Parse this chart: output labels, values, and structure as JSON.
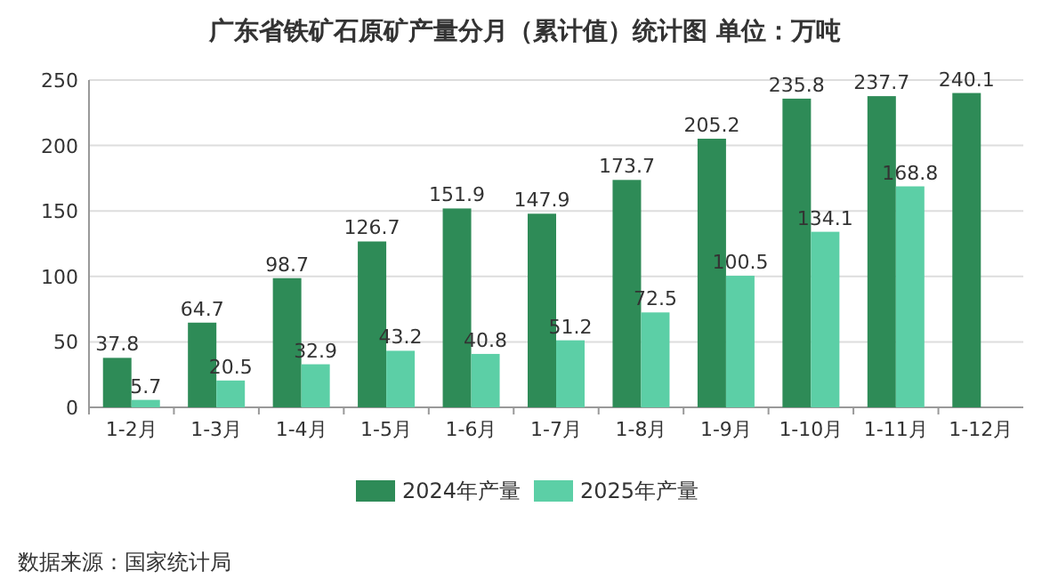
{
  "chart_data": {
    "type": "bar",
    "title": "广东省铁矿石原矿产量分月（累计值）统计图 单位：万吨",
    "categories": [
      "1-2月",
      "1-3月",
      "1-4月",
      "1-5月",
      "1-6月",
      "1-7月",
      "1-8月",
      "1-9月",
      "1-10月",
      "1-11月",
      "1-12月"
    ],
    "series": [
      {
        "name": "2024年产量",
        "color": "#2e8b57",
        "values": [
          37.8,
          64.7,
          98.7,
          126.7,
          151.9,
          147.9,
          173.7,
          205.2,
          235.8,
          237.7,
          240.1
        ]
      },
      {
        "name": "2025年产量",
        "color": "#5ccfa6",
        "values": [
          5.7,
          20.5,
          32.9,
          43.2,
          40.8,
          51.2,
          72.5,
          100.5,
          134.1,
          168.8,
          null
        ]
      }
    ],
    "ylim": [
      0,
      250
    ],
    "yticks": [
      0,
      50,
      100,
      150,
      200,
      250
    ],
    "grid": "y",
    "legend": "bottom",
    "data_labels": true,
    "annotations": [
      "数据来源：国家统计局"
    ]
  }
}
